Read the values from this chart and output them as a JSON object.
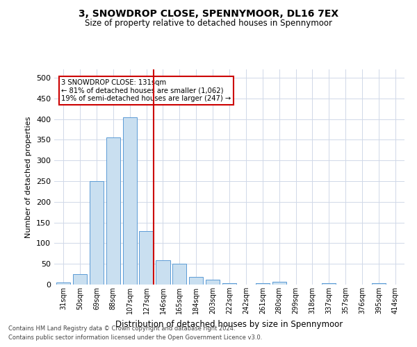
{
  "title": "3, SNOWDROP CLOSE, SPENNYMOOR, DL16 7EX",
  "subtitle": "Size of property relative to detached houses in Spennymoor",
  "xlabel": "Distribution of detached houses by size in Spennymoor",
  "ylabel": "Number of detached properties",
  "footnote1": "Contains HM Land Registry data © Crown copyright and database right 2024.",
  "footnote2": "Contains public sector information licensed under the Open Government Licence v3.0.",
  "categories": [
    "31sqm",
    "50sqm",
    "69sqm",
    "88sqm",
    "107sqm",
    "127sqm",
    "146sqm",
    "165sqm",
    "184sqm",
    "203sqm",
    "222sqm",
    "242sqm",
    "261sqm",
    "280sqm",
    "299sqm",
    "318sqm",
    "337sqm",
    "357sqm",
    "376sqm",
    "395sqm",
    "414sqm"
  ],
  "values": [
    5,
    25,
    250,
    355,
    405,
    130,
    58,
    50,
    18,
    12,
    4,
    0,
    4,
    6,
    0,
    0,
    4,
    0,
    0,
    3,
    0
  ],
  "bar_color": "#c9dff0",
  "bar_edge_color": "#5b9bd5",
  "vline_index": 5,
  "vline_color": "#cc0000",
  "annotation_text": "3 SNOWDROP CLOSE: 131sqm\n← 81% of detached houses are smaller (1,062)\n19% of semi-detached houses are larger (247) →",
  "annotation_box_color": "#ffffff",
  "annotation_box_edge": "#cc0000",
  "ylim": [
    0,
    520
  ],
  "yticks": [
    0,
    50,
    100,
    150,
    200,
    250,
    300,
    350,
    400,
    450,
    500
  ],
  "background_color": "#ffffff",
  "grid_color": "#d0d8e8"
}
